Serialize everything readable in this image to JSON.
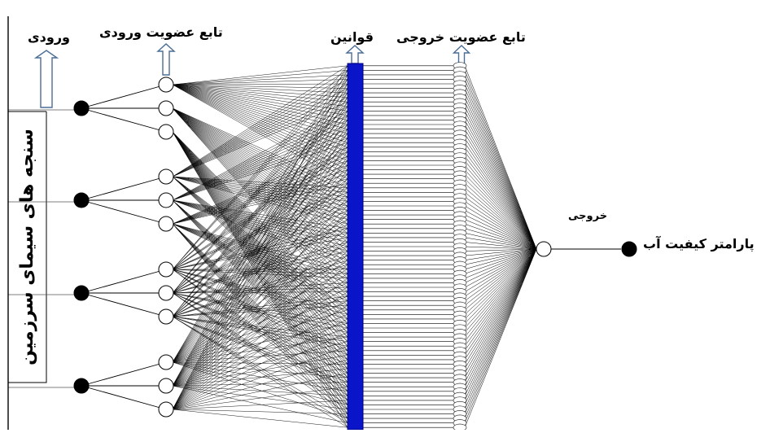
{
  "labels": {
    "inputs": "ورودی",
    "input_membership": "تابع عضویت ورودی",
    "rules": "قوانین",
    "output_membership": "تابع عضویت خروجی",
    "output": "خروجی",
    "water_quality_parameter": "پارامتر کیفیت آب",
    "landscape_metrics": "سنجه های سیمای سرزمین"
  },
  "structure": {
    "input_nodes": 4,
    "membership_functions_per_input": 3,
    "rule_count": 81,
    "output_membership_functions": 81
  },
  "colors": {
    "rule_layer": "#0a14c8",
    "rule_layer_border": "#00007a",
    "node_fill_input": "#000000",
    "node_fill_mf": "#ffffff",
    "edge": "#000000",
    "arrow_outline": "#4a6d96"
  }
}
